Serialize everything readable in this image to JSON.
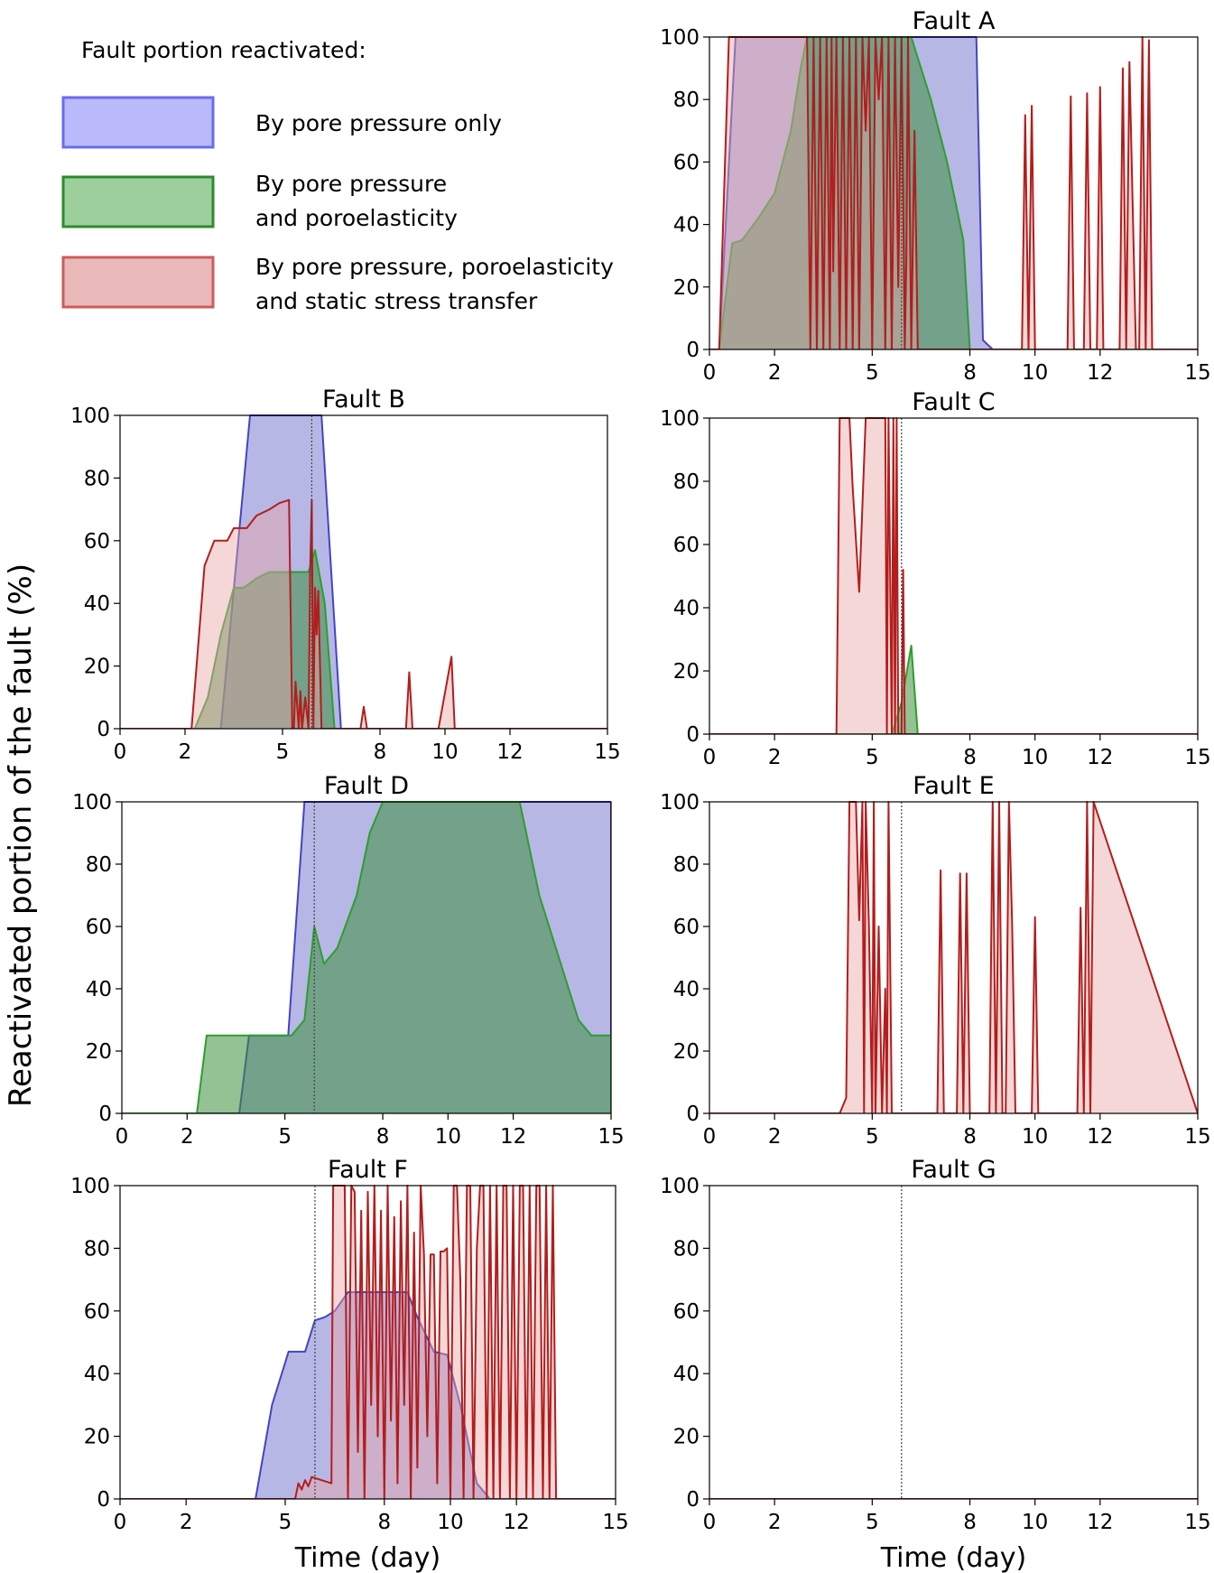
{
  "figure": {
    "ylabel": "Reactivated portion of the fault (%)",
    "xlabel": "Time (day)"
  },
  "legend": {
    "title": "Fault portion reactivated:",
    "items": [
      {
        "label_lines": [
          "By pore pressure only"
        ],
        "fill": "#b9b9fb",
        "stroke": "#6b6bf0"
      },
      {
        "label_lines": [
          "By pore pressure",
          "and poroelasticity"
        ],
        "fill": "#9ccf9c",
        "stroke": "#2e8b2e"
      },
      {
        "label_lines": [
          "By pore pressure, poroelasticity",
          "and static stress transfer"
        ],
        "fill": "#e9b9b9",
        "stroke": "#cd5c5c"
      }
    ]
  },
  "colors": {
    "blue_fill": "#7b7bd2",
    "blue_line": "#4444c4",
    "green_fill": "#3d8f3d",
    "green_line": "#2e9e2e",
    "red_fill": "#e9a7a7",
    "red_line": "#b31d1d",
    "axis": "#000000",
    "vline": "#444444"
  },
  "chart_data": [
    {
      "type": "area",
      "title": "Fault A",
      "xlabel": "",
      "ylabel": "",
      "xlim": [
        0,
        15
      ],
      "ylim": [
        0,
        100
      ],
      "xticks": [
        0,
        2,
        5,
        8,
        10,
        12,
        15
      ],
      "xtick_labels": [
        "0",
        "2",
        "5",
        "8",
        "10",
        "12",
        "15"
      ],
      "yticks": [
        0,
        20,
        40,
        60,
        80,
        100
      ],
      "yline": 5.9,
      "series": [
        {
          "name": "By pore pressure only",
          "color": "blue",
          "x": [
            0,
            0.3,
            0.8,
            8.2,
            8.4,
            8.7,
            15
          ],
          "y": [
            0,
            0,
            100,
            100,
            3,
            0,
            0
          ]
        },
        {
          "name": "By pore pressure and poroelasticity",
          "color": "green",
          "x": [
            0,
            0.3,
            0.7,
            1,
            1.5,
            2,
            2.5,
            2.8,
            3,
            3.3,
            6.2,
            6.8,
            7.3,
            7.8,
            8,
            15
          ],
          "y": [
            0,
            0,
            34,
            35,
            42,
            50,
            70,
            90,
            100,
            100,
            100,
            80,
            60,
            35,
            0,
            0
          ]
        },
        {
          "name": "By pore pressure, poroelasticity and static stress transfer",
          "color": "red",
          "x": [
            0,
            0.3,
            0.6,
            3.0,
            3.1,
            3.2,
            3.3,
            3.4,
            3.5,
            3.6,
            3.7,
            3.75,
            3.8,
            3.9,
            4.0,
            4.1,
            4.2,
            4.3,
            4.4,
            4.5,
            4.6,
            4.7,
            4.8,
            4.9,
            5.0,
            5.1,
            5.2,
            5.3,
            5.4,
            5.5,
            5.6,
            5.7,
            5.8,
            5.9,
            6.0,
            6.05,
            6.1,
            6.2,
            6.3,
            6.4,
            6.5,
            9.5,
            9.6,
            9.7,
            9.8,
            9.9,
            10.0,
            10.1,
            11.0,
            11.1,
            11.2,
            11.5,
            11.6,
            11.7,
            11.9,
            12.0,
            12.1,
            12.6,
            12.7,
            12.8,
            12.9,
            13.1,
            13.2,
            13.3,
            13.4,
            13.5,
            13.6,
            15
          ],
          "y": [
            0,
            0,
            100,
            100,
            0,
            100,
            0,
            100,
            0,
            100,
            0,
            100,
            25,
            100,
            0,
            100,
            0,
            100,
            0,
            100,
            0,
            100,
            70,
            100,
            0,
            100,
            80,
            100,
            0,
            100,
            0,
            100,
            20,
            100,
            0,
            30,
            100,
            0,
            70,
            0,
            0,
            0,
            0,
            75,
            0,
            78,
            0,
            0,
            0,
            81,
            0,
            0,
            82,
            0,
            0,
            84,
            0,
            0,
            90,
            0,
            92,
            0,
            0,
            100,
            0,
            99,
            0,
            0
          ]
        }
      ]
    },
    {
      "type": "area",
      "title": "Fault B",
      "xlabel": "",
      "ylabel": "",
      "xlim": [
        0,
        15
      ],
      "ylim": [
        0,
        100
      ],
      "xticks": [
        0,
        2,
        5,
        8,
        10,
        12,
        15
      ],
      "xtick_labels": [
        "0",
        "2",
        "5",
        "8",
        "10",
        "12",
        "15"
      ],
      "yticks": [
        0,
        20,
        40,
        60,
        80,
        100
      ],
      "yline": 5.9,
      "series": [
        {
          "name": "By pore pressure only",
          "color": "blue",
          "x": [
            0,
            3.1,
            4.0,
            6.2,
            6.8,
            15
          ],
          "y": [
            0,
            0,
            100,
            100,
            0,
            0
          ]
        },
        {
          "name": "By pore pressure and poroelasticity",
          "color": "green",
          "x": [
            0,
            2.3,
            2.7,
            3.1,
            3.5,
            3.8,
            4.2,
            4.6,
            5.0,
            5.5,
            5.8,
            6.0,
            6.3,
            6.6,
            15
          ],
          "y": [
            0,
            0,
            10,
            30,
            45,
            45,
            48,
            50,
            50,
            50,
            50,
            57,
            40,
            0,
            0
          ]
        },
        {
          "name": "By pore pressure, poroelasticity and static stress transfer",
          "color": "red",
          "x": [
            0,
            2.2,
            2.6,
            2.9,
            3.3,
            3.5,
            3.9,
            4.2,
            4.6,
            4.9,
            5.2,
            5.3,
            5.35,
            5.4,
            5.5,
            5.55,
            5.6,
            5.7,
            5.8,
            5.85,
            5.9,
            5.95,
            6.0,
            6.05,
            6.1,
            6.2,
            6.3,
            6.4,
            6.5,
            7.4,
            7.5,
            7.6,
            8.8,
            8.9,
            9.0,
            9.8,
            10.2,
            10.3,
            15
          ],
          "y": [
            0,
            0,
            52,
            60,
            60,
            64,
            64,
            68,
            70,
            72,
            73,
            0,
            0,
            15,
            0,
            12,
            0,
            10,
            0,
            50,
            73,
            0,
            45,
            30,
            44,
            0,
            0,
            0,
            0,
            0,
            7,
            0,
            0,
            18,
            0,
            0,
            23,
            0,
            0
          ]
        }
      ]
    },
    {
      "type": "area",
      "title": "Fault C",
      "xlabel": "",
      "ylabel": "",
      "xlim": [
        0,
        15
      ],
      "ylim": [
        0,
        100
      ],
      "xticks": [
        0,
        2,
        5,
        8,
        10,
        12,
        15
      ],
      "xtick_labels": [
        "0",
        "2",
        "5",
        "8",
        "10",
        "12",
        "15"
      ],
      "yticks": [
        0,
        20,
        40,
        60,
        80,
        100
      ],
      "yline": 5.9,
      "series": [
        {
          "name": "By pore pressure only",
          "color": "blue",
          "x": [
            0,
            15
          ],
          "y": [
            0,
            0
          ]
        },
        {
          "name": "By pore pressure and poroelasticity",
          "color": "green",
          "x": [
            0,
            5.6,
            5.9,
            6.2,
            6.4,
            15
          ],
          "y": [
            0,
            0,
            10,
            28,
            0,
            0
          ]
        },
        {
          "name": "By pore pressure, poroelasticity and static stress transfer",
          "color": "red",
          "x": [
            0,
            3.9,
            4.0,
            4.3,
            4.4,
            4.6,
            4.8,
            5.1,
            5.4,
            5.45,
            5.5,
            5.6,
            5.65,
            5.7,
            5.75,
            5.8,
            5.9,
            5.95,
            6.0,
            6.1,
            15
          ],
          "y": [
            0,
            0,
            100,
            100,
            78,
            45,
            100,
            100,
            100,
            0,
            100,
            0,
            100,
            0,
            100,
            0,
            0,
            52,
            0,
            0,
            0
          ]
        }
      ]
    },
    {
      "type": "area",
      "title": "Fault D",
      "xlabel": "",
      "ylabel": "",
      "xlim": [
        0,
        15
      ],
      "ylim": [
        0,
        100
      ],
      "xticks": [
        0,
        2,
        5,
        8,
        10,
        12,
        15
      ],
      "xtick_labels": [
        "0",
        "2",
        "5",
        "8",
        "10",
        "12",
        "15"
      ],
      "yticks": [
        0,
        20,
        40,
        60,
        80,
        100
      ],
      "yline": 5.9,
      "series": [
        {
          "name": "By pore pressure only",
          "color": "blue",
          "x": [
            0,
            3.6,
            3.9,
            5.1,
            5.6,
            15,
            15
          ],
          "y": [
            0,
            0,
            25,
            25,
            100,
            100,
            0
          ]
        },
        {
          "name": "By pore pressure and poroelasticity",
          "color": "green",
          "x": [
            0,
            2.3,
            2.6,
            4.9,
            5.2,
            5.6,
            5.9,
            6.2,
            6.6,
            7.2,
            7.6,
            8.0,
            8.5,
            12.2,
            12.8,
            13.4,
            14.0,
            14.4,
            15,
            15
          ],
          "y": [
            0,
            0,
            25,
            25,
            25,
            30,
            60,
            48,
            53,
            70,
            90,
            100,
            100,
            100,
            70,
            50,
            30,
            25,
            25,
            0
          ]
        }
      ]
    },
    {
      "type": "area",
      "title": "Fault E",
      "xlabel": "",
      "ylabel": "",
      "xlim": [
        0,
        15
      ],
      "ylim": [
        0,
        100
      ],
      "xticks": [
        0,
        2,
        5,
        8,
        10,
        12,
        15
      ],
      "xtick_labels": [
        "0",
        "2",
        "5",
        "8",
        "10",
        "12",
        "15"
      ],
      "yticks": [
        0,
        20,
        40,
        60,
        80,
        100
      ],
      "yline": 5.9,
      "series": [
        {
          "name": "By pore pressure, poroelasticity and static stress transfer",
          "color": "red",
          "x": [
            0,
            4.0,
            4.2,
            4.3,
            4.4,
            4.5,
            4.6,
            4.7,
            4.75,
            4.8,
            4.9,
            5.0,
            5.05,
            5.1,
            5.2,
            5.3,
            5.4,
            5.45,
            5.5,
            5.6,
            5.7,
            7.0,
            7.1,
            7.2,
            7.6,
            7.7,
            7.8,
            7.9,
            8.0,
            8.6,
            8.7,
            8.8,
            8.9,
            9.0,
            9.1,
            9.2,
            9.3,
            9.4,
            9.5,
            9.9,
            10.0,
            10.1,
            10.2,
            11.3,
            11.4,
            11.5,
            11.6,
            11.7,
            11.8,
            15
          ],
          "y": [
            0,
            0,
            5,
            100,
            100,
            100,
            62,
            100,
            0,
            100,
            60,
            0,
            100,
            0,
            60,
            0,
            40,
            0,
            100,
            0,
            0,
            0,
            78,
            0,
            0,
            77,
            0,
            77,
            0,
            0,
            100,
            0,
            100,
            0,
            0,
            100,
            60,
            0,
            0,
            0,
            63,
            0,
            0,
            0,
            66,
            0,
            100,
            0,
            100,
            0
          ]
        }
      ]
    },
    {
      "type": "area",
      "title": "Fault F",
      "xlabel": "Time (day)",
      "ylabel": "",
      "xlim": [
        0,
        15
      ],
      "ylim": [
        0,
        100
      ],
      "xticks": [
        0,
        2,
        5,
        8,
        10,
        12,
        15
      ],
      "xtick_labels": [
        "0",
        "2",
        "5",
        "8",
        "10",
        "12",
        "15"
      ],
      "yticks": [
        0,
        20,
        40,
        60,
        80,
        100
      ],
      "yline": 5.9,
      "series": [
        {
          "name": "By pore pressure only",
          "color": "blue",
          "x": [
            0,
            4.1,
            4.6,
            5.1,
            5.6,
            5.9,
            6.2,
            6.5,
            6.9,
            7.3,
            8.7,
            9.0,
            9.5,
            9.9,
            10.3,
            10.8,
            11.2,
            15
          ],
          "y": [
            0,
            0,
            30,
            47,
            47,
            57,
            58,
            60,
            66,
            66,
            66,
            58,
            47,
            46,
            30,
            5,
            0,
            0
          ]
        },
        {
          "name": "By pore pressure, poroelasticity and static stress transfer",
          "color": "red",
          "x": [
            0,
            5.3,
            5.4,
            5.5,
            5.6,
            5.7,
            5.8,
            6.4,
            6.45,
            6.5,
            6.8,
            6.9,
            7.0,
            7.1,
            7.2,
            7.3,
            7.4,
            7.5,
            7.6,
            7.7,
            7.8,
            7.9,
            8.0,
            8.1,
            8.2,
            8.3,
            8.4,
            8.5,
            8.6,
            8.7,
            8.8,
            8.9,
            9.0,
            9.1,
            9.2,
            9.3,
            9.4,
            9.5,
            9.6,
            9.7,
            9.8,
            9.9,
            10.0,
            10.1,
            10.2,
            10.3,
            10.4,
            10.5,
            10.6,
            10.7,
            10.8,
            10.9,
            11.0,
            11.1,
            11.2,
            11.3,
            11.4,
            11.5,
            11.6,
            11.7,
            11.8,
            11.9,
            12.0,
            12.1,
            12.2,
            12.3,
            12.4,
            12.5,
            12.6,
            12.7,
            12.8,
            12.9,
            13.0,
            13.1,
            13.2,
            15
          ],
          "y": [
            0,
            0,
            5,
            3,
            6,
            4,
            7,
            5,
            100,
            100,
            100,
            0,
            100,
            98,
            15,
            92,
            0,
            98,
            30,
            100,
            20,
            92,
            0,
            100,
            25,
            90,
            5,
            95,
            30,
            100,
            0,
            85,
            10,
            100,
            78,
            20,
            78,
            78,
            5,
            79,
            79,
            80,
            0,
            100,
            100,
            70,
            0,
            100,
            100,
            0,
            80,
            100,
            100,
            0,
            100,
            0,
            100,
            0,
            100,
            100,
            0,
            100,
            0,
            100,
            100,
            0,
            100,
            0,
            100,
            100,
            0,
            100,
            0,
            100,
            0,
            0
          ]
        }
      ]
    },
    {
      "type": "area",
      "title": "Fault G",
      "xlabel": "Time (day)",
      "ylabel": "",
      "xlim": [
        0,
        15
      ],
      "ylim": [
        0,
        100
      ],
      "xticks": [
        0,
        2,
        5,
        8,
        10,
        12,
        15
      ],
      "xtick_labels": [
        "0",
        "2",
        "5",
        "8",
        "10",
        "12",
        "15"
      ],
      "yticks": [
        0,
        20,
        40,
        60,
        80,
        100
      ],
      "yline": 5.9,
      "series": [
        {
          "name": "By pore pressure, poroelasticity and static stress transfer",
          "color": "red",
          "x": [
            0,
            15
          ],
          "y": [
            0,
            0
          ]
        }
      ]
    }
  ]
}
